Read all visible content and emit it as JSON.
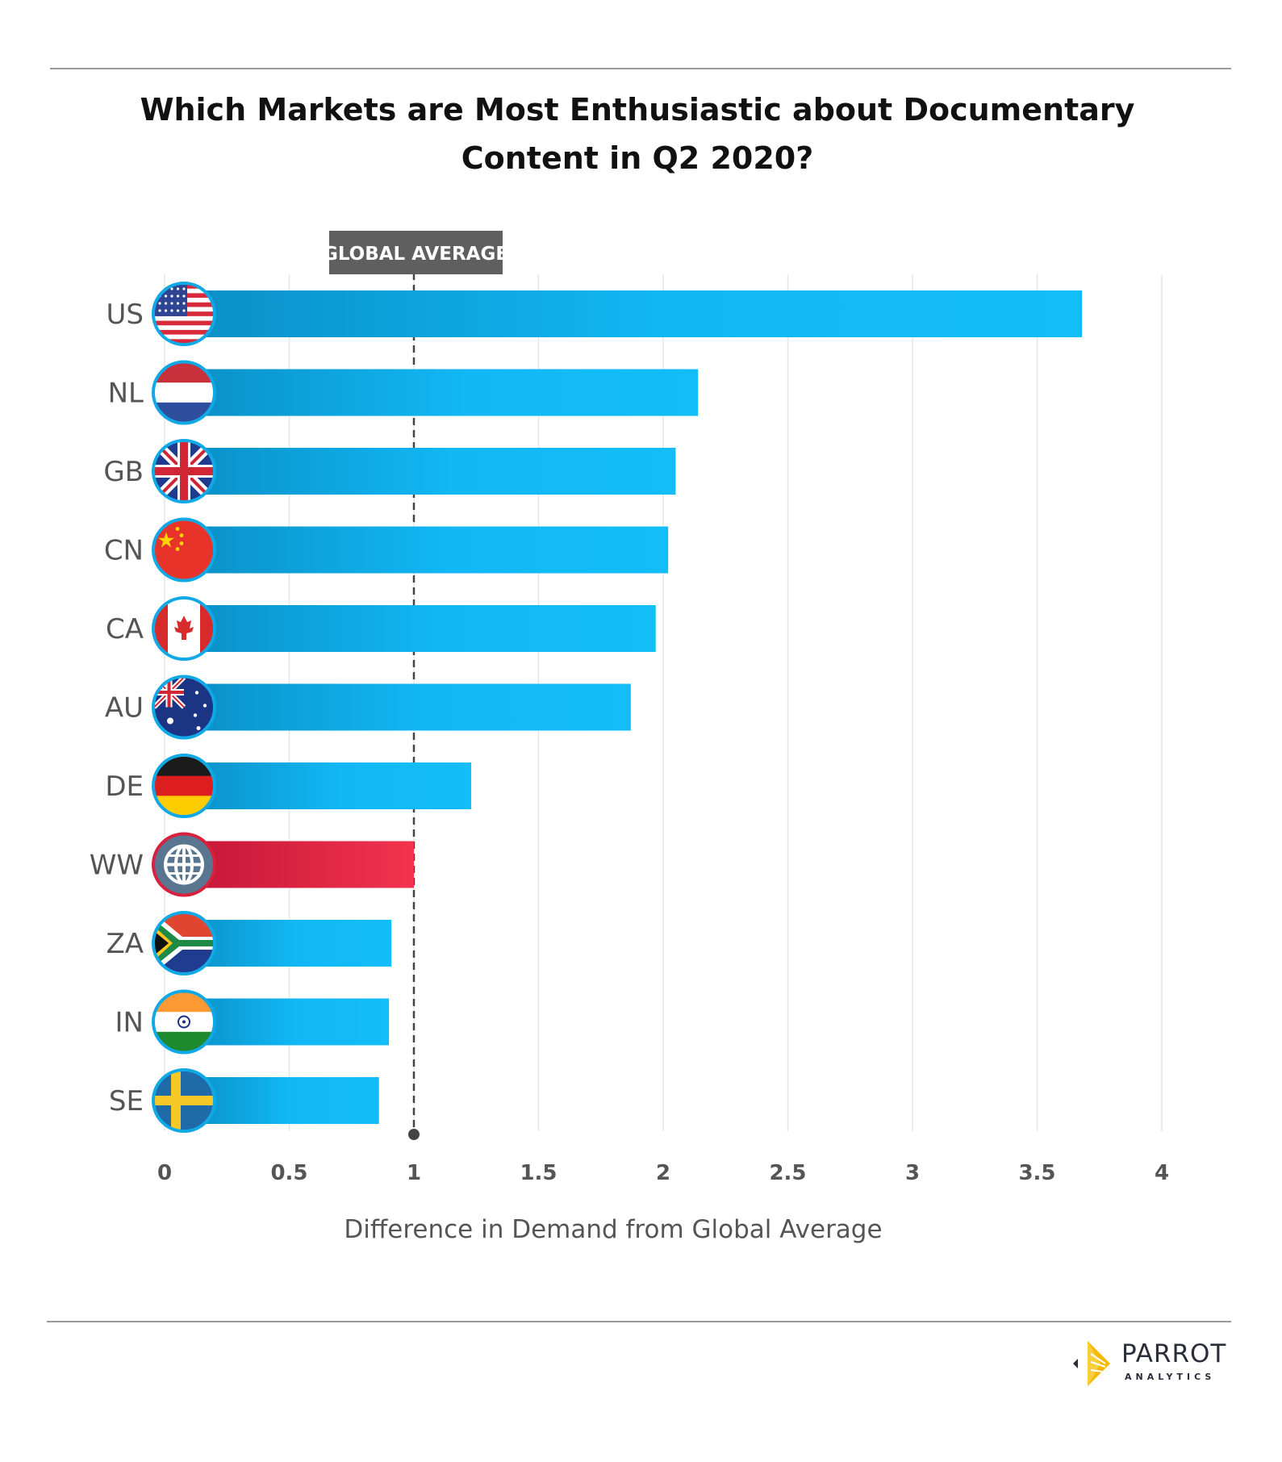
{
  "title_line1": "Which Markets are Most Enthusiastic about Documentary",
  "title_line2": "Content in Q2 2020?",
  "logo": {
    "name": "PARROT",
    "subtitle": "ANALYTICS"
  },
  "chart_data": {
    "type": "bar",
    "orientation": "horizontal",
    "xlabel": "Difference in Demand from Global Average",
    "xlim": [
      0,
      4
    ],
    "xticks": [
      "0",
      "0.5",
      "1",
      "1.5",
      "2",
      "2.5",
      "3",
      "3.5",
      "4"
    ],
    "grid": true,
    "reference_line": {
      "value": 1,
      "label": "GLOBAL AVERAGE"
    },
    "categories": [
      "US",
      "NL",
      "GB",
      "CN",
      "CA",
      "AU",
      "DE",
      "WW",
      "ZA",
      "IN",
      "SE"
    ],
    "values": [
      3.68,
      2.14,
      2.05,
      2.02,
      1.97,
      1.87,
      1.23,
      1.0,
      0.91,
      0.9,
      0.86
    ],
    "flags": [
      "us-flag-icon",
      "nl-flag-icon",
      "gb-flag-icon",
      "cn-flag-icon",
      "ca-flag-icon",
      "au-flag-icon",
      "de-flag-icon",
      "globe-icon",
      "za-flag-icon",
      "in-flag-icon",
      "se-flag-icon"
    ],
    "colors": {
      "bar": "#11b8f5",
      "bar_dark": "#0a95cc",
      "highlight": "#f0304f",
      "highlight_dark": "#c81838",
      "reference_label_bg": "#5f5f5f"
    },
    "highlight_category": "WW"
  }
}
